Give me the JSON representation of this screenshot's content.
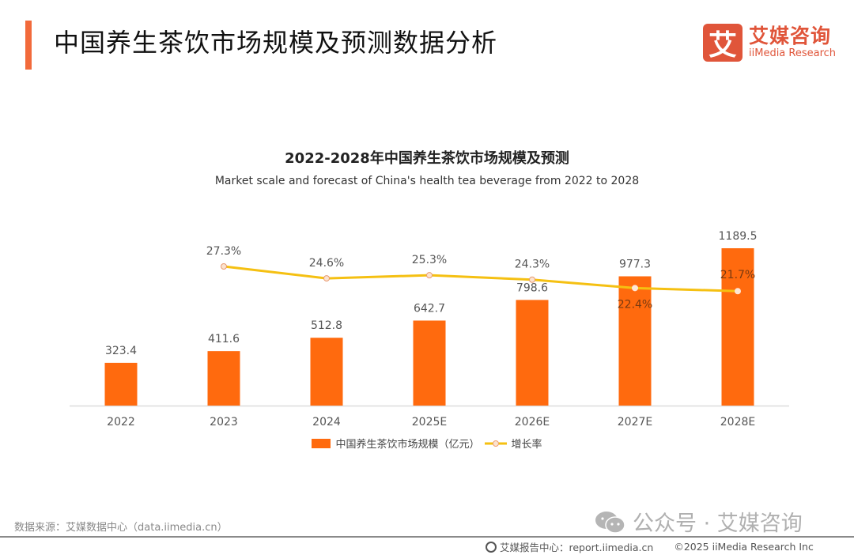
{
  "header": {
    "title": "中国养生茶饮市场规模及预测数据分析",
    "logo_mark": "艾",
    "logo_cn": "艾媒咨询",
    "logo_en": "iiMedia Research"
  },
  "chart_data": {
    "type": "bar",
    "title": "2022-2028年中国养生茶饮市场规模及预测",
    "subtitle": "Market scale and forecast of China's health tea beverage from 2022 to 2028",
    "categories": [
      "2022",
      "2023",
      "2024",
      "2025E",
      "2026E",
      "2027E",
      "2028E"
    ],
    "series": [
      {
        "name": "中国养生茶饮市场规模（亿元）",
        "type": "bar",
        "color": "#ff6a0e",
        "values": [
          323.4,
          411.6,
          512.8,
          642.7,
          798.6,
          977.3,
          1189.5
        ],
        "labels": [
          "323.4",
          "411.6",
          "512.8",
          "642.7",
          "798.6",
          "977.3",
          "1189.5"
        ]
      },
      {
        "name": "增长率",
        "type": "line",
        "color": "#f5c012",
        "values": [
          null,
          27.3,
          24.6,
          25.3,
          24.3,
          22.4,
          21.7
        ],
        "labels": [
          "",
          "27.3%",
          "24.6%",
          "25.3%",
          "24.3%",
          "22.4%",
          "21.7%"
        ]
      }
    ],
    "xlabel": "",
    "ylabel": "",
    "grid": false,
    "legend": "bottom-center"
  },
  "footer": {
    "source": "数据来源：艾媒数据中心（data.iimedia.cn）",
    "watermark": "公众号 · 艾媒咨询",
    "report_center": "艾媒报告中心：report.iimedia.cn",
    "copyright": "©2025  iiMedia Research  Inc"
  }
}
